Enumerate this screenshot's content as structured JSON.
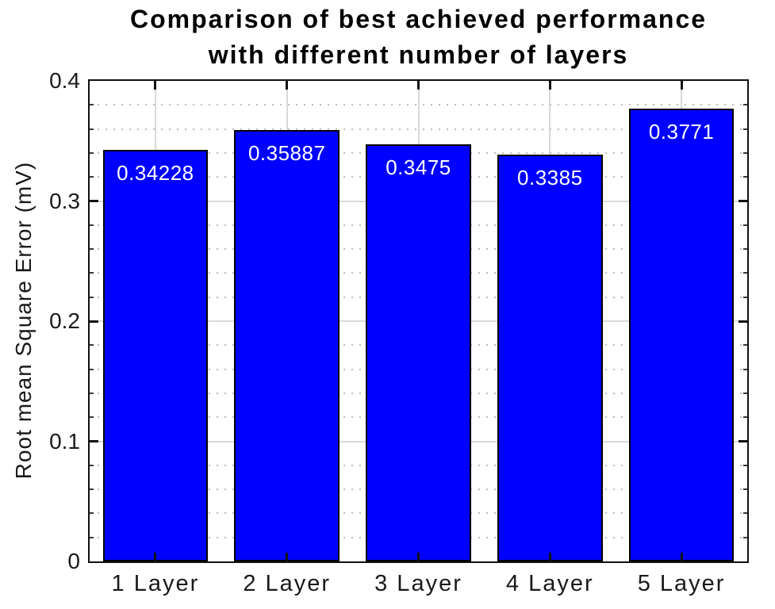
{
  "chart_data": {
    "type": "bar",
    "title_line1": "Comparison of best achieved performance",
    "title_line2": "with different number of layers",
    "categories": [
      "1 Layer",
      "2 Layer",
      "3 Layer",
      "4 Layer",
      "5 Layer"
    ],
    "values": [
      0.34228,
      0.35887,
      0.3475,
      0.3385,
      0.3771
    ],
    "value_labels": [
      "0.34228",
      "0.35887",
      "0.3475",
      "0.3385",
      "0.3771"
    ],
    "xlabel": "",
    "ylabel": "Root mean Square Error (mV)",
    "ylim": [
      0,
      0.4
    ],
    "yticks": [
      0,
      0.1,
      0.2,
      0.3,
      0.4
    ],
    "ytick_labels": [
      "0",
      "0.1",
      "0.2",
      "0.3",
      "0.4"
    ],
    "minor_tick_step": 0.02,
    "bar_width_fraction": 0.8,
    "grid": "on",
    "minor_grid": "on",
    "legend_position": "none",
    "colors": {
      "bar_fill": "#0000ff",
      "bar_edge": "#000000",
      "value_label": "#ffffff",
      "axis_box": "#111111",
      "major_grid": "#d9d9d9",
      "minor_grid": "#bdbdbd",
      "tick": "#111111",
      "text": "#1a1a1a",
      "title": "#000000",
      "background": "#ffffff"
    }
  }
}
